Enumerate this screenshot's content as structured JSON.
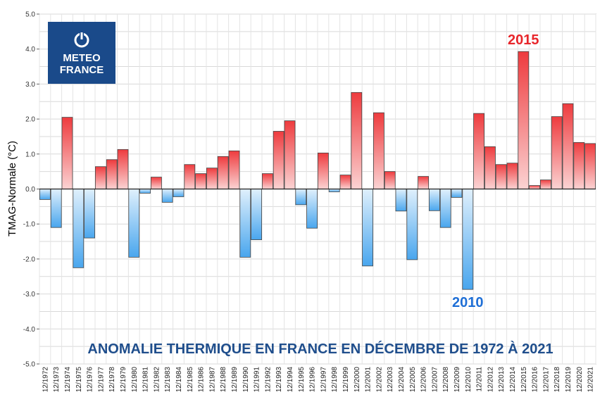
{
  "chart_data": {
    "type": "bar",
    "title": "ANOMALIE THERMIQUE EN FRANCE EN DÉCEMBRE DE 1972 À 2021",
    "xlabel": "",
    "ylabel": "TMAG-Normale (°C)",
    "ylim": [
      -5.0,
      5.0
    ],
    "yticks": [
      "5.0",
      "4.0",
      "3.0",
      "2.0",
      "1.0",
      "0.0",
      "-1.0",
      "-2.0",
      "-3.0",
      "-4.0",
      "-5.0"
    ],
    "grid": true,
    "categories": [
      "12/1972",
      "12/1973",
      "12/1974",
      "12/1975",
      "12/1976",
      "12/1977",
      "12/1978",
      "12/1979",
      "12/1980",
      "12/1981",
      "12/1982",
      "12/1983",
      "12/1984",
      "12/1985",
      "12/1986",
      "12/1987",
      "12/1988",
      "12/1989",
      "12/1990",
      "12/1991",
      "12/1992",
      "12/1993",
      "12/1994",
      "12/1995",
      "12/1996",
      "12/1997",
      "12/1998",
      "12/1999",
      "12/2000",
      "12/2001",
      "12/2002",
      "12/2003",
      "12/2004",
      "12/2005",
      "12/2006",
      "12/2007",
      "12/2008",
      "12/2009",
      "12/2010",
      "12/2011",
      "12/2012",
      "12/2013",
      "12/2014",
      "12/2015",
      "12/2016",
      "12/2017",
      "12/2018",
      "12/2019",
      "12/2020",
      "12/2021"
    ],
    "values": [
      -0.3,
      -1.1,
      2.05,
      -2.25,
      -1.4,
      0.64,
      0.84,
      1.13,
      -1.95,
      -0.12,
      0.34,
      -0.38,
      -0.22,
      0.7,
      0.44,
      0.6,
      0.93,
      1.09,
      -1.95,
      -1.45,
      0.44,
      1.65,
      1.95,
      -0.45,
      -1.12,
      1.03,
      -0.08,
      0.4,
      2.76,
      -2.2,
      2.18,
      0.5,
      -0.63,
      -2.02,
      0.36,
      -0.62,
      -1.1,
      -0.24,
      -2.87,
      2.16,
      1.21,
      0.7,
      0.74,
      3.93,
      0.1,
      0.26,
      2.07,
      2.44,
      1.33,
      1.3
    ],
    "annotations": [
      {
        "text": "2015",
        "category": "12/2015",
        "color": "#e8262b"
      },
      {
        "text": "2010",
        "category": "12/2010",
        "color": "#1f6fd6"
      }
    ],
    "colors": {
      "positive": "#e8262b",
      "negative": "#4aa8ee"
    }
  },
  "logo": {
    "line1": "METEO",
    "line2": "FRANCE",
    "bg": "#1a4a8a"
  }
}
